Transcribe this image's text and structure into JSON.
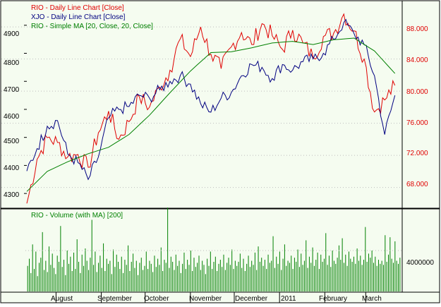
{
  "colors": {
    "background": "#f5fcf0",
    "frame": "#000000",
    "price_red": "#e00000",
    "xjo_navy": "#000080",
    "ma_green": "#008000",
    "volume_green": "#008000",
    "grid": "#bdbdbd"
  },
  "price_panel": {
    "legend": [
      {
        "label": "RIO - Daily Line Chart [Close]",
        "color": "#e00000"
      },
      {
        "label": "XJO - Daily Line Chart [Close]",
        "color": "#000080"
      },
      {
        "label": "RIO - Simple MA [20, Close, 20, Close]",
        "color": "#008000"
      }
    ],
    "left_ticks": [
      "4900",
      "4800",
      "4700",
      "4600",
      "4500",
      "4400",
      "4300"
    ],
    "right_ticks": [
      "88.000",
      "84.000",
      "80.000",
      "76.000",
      "72.000",
      "68.000"
    ]
  },
  "volume_panel": {
    "legend": "RIO - Volume (with MA) [200]",
    "right_tick": "4000000"
  },
  "x_axis": {
    "months": [
      "August",
      "September",
      "October",
      "November",
      "December",
      "2011",
      "February",
      "March"
    ]
  },
  "chart_data": [
    {
      "type": "line",
      "title": "",
      "xlabel": "",
      "ylabel": "",
      "x_range": [
        "2010-07-12",
        "2011-03-25"
      ],
      "left_axis": {
        "series": "XJO - Daily Line Chart [Close]",
        "ylim": [
          4250,
          4980
        ],
        "ticks": [
          4300,
          4400,
          4500,
          4600,
          4700,
          4800,
          4900
        ]
      },
      "right_axis": {
        "series": [
          "RIO - Daily Line Chart [Close]",
          "RIO - Simple MA [20, Close, 20, Close]"
        ],
        "ylim": [
          65.5,
          91.0
        ],
        "ticks": [
          68,
          72,
          76,
          80,
          84,
          88
        ]
      },
      "grid": true,
      "legend_position": "top-left",
      "series": [
        {
          "name": "RIO - Daily Line Chart [Close]",
          "axis": "right",
          "color": "#e00000",
          "x": [
            "2010-07-12",
            "2010-07-19",
            "2010-07-26",
            "2010-08-02",
            "2010-08-09",
            "2010-08-16",
            "2010-08-23",
            "2010-08-30",
            "2010-09-06",
            "2010-09-13",
            "2010-09-20",
            "2010-09-27",
            "2010-10-04",
            "2010-10-11",
            "2010-10-18",
            "2010-10-25",
            "2010-11-01",
            "2010-11-08",
            "2010-11-15",
            "2010-11-22",
            "2010-11-29",
            "2010-12-06",
            "2010-12-13",
            "2010-12-20",
            "2010-12-27",
            "2011-01-03",
            "2011-01-10",
            "2011-01-17",
            "2011-01-24",
            "2011-01-31",
            "2011-02-07",
            "2011-02-14",
            "2011-02-21",
            "2011-02-28",
            "2011-03-07",
            "2011-03-14",
            "2011-03-21"
          ],
          "y": [
            66.0,
            71.5,
            74.2,
            73.6,
            71.8,
            72.1,
            70.5,
            74.8,
            77.5,
            74.0,
            76.2,
            79.3,
            78.0,
            80.5,
            82.6,
            86.5,
            84.3,
            88.0,
            84.6,
            82.8,
            85.5,
            87.3,
            85.8,
            88.4,
            86.9,
            85.2,
            87.6,
            86.0,
            84.2,
            86.8,
            87.2,
            89.6,
            87.5,
            84.0,
            77.4,
            78.9,
            80.7
          ]
        },
        {
          "name": "XJO - Daily Line Chart [Close]",
          "axis": "left",
          "color": "#000080",
          "x": [
            "2010-07-12",
            "2010-07-19",
            "2010-07-26",
            "2010-08-02",
            "2010-08-09",
            "2010-08-16",
            "2010-08-23",
            "2010-08-30",
            "2010-09-06",
            "2010-09-13",
            "2010-09-20",
            "2010-09-27",
            "2010-10-04",
            "2010-10-11",
            "2010-10-18",
            "2010-10-25",
            "2010-11-01",
            "2010-11-08",
            "2010-11-15",
            "2010-11-22",
            "2010-11-29",
            "2010-12-06",
            "2010-12-13",
            "2010-12-20",
            "2010-12-27",
            "2011-01-03",
            "2011-01-10",
            "2011-01-17",
            "2011-01-24",
            "2011-01-31",
            "2011-02-07",
            "2011-02-14",
            "2011-02-21",
            "2011-02-28",
            "2011-03-07",
            "2011-03-14",
            "2011-03-21"
          ],
          "y": [
            4380,
            4460,
            4540,
            4560,
            4440,
            4410,
            4350,
            4430,
            4570,
            4600,
            4610,
            4650,
            4640,
            4670,
            4700,
            4720,
            4690,
            4620,
            4590,
            4640,
            4660,
            4720,
            4760,
            4750,
            4710,
            4760,
            4740,
            4770,
            4780,
            4800,
            4850,
            4910,
            4870,
            4830,
            4720,
            4510,
            4650
          ]
        },
        {
          "name": "RIO - Simple MA [20, Close, 20, Close]",
          "axis": "right",
          "color": "#008000",
          "x": [
            "2010-07-12",
            "2010-07-26",
            "2010-08-09",
            "2010-08-23",
            "2010-09-06",
            "2010-09-20",
            "2010-10-04",
            "2010-10-18",
            "2010-11-01",
            "2010-11-15",
            "2010-11-29",
            "2010-12-13",
            "2010-12-27",
            "2011-01-10",
            "2011-01-24",
            "2011-02-07",
            "2011-02-21",
            "2011-03-07",
            "2011-03-21"
          ],
          "y": [
            67.5,
            70.0,
            71.2,
            72.2,
            73.0,
            74.6,
            77.0,
            79.8,
            82.5,
            84.8,
            84.9,
            85.4,
            86.0,
            86.2,
            85.8,
            86.4,
            86.6,
            85.0,
            82.2
          ]
        }
      ]
    },
    {
      "type": "bar",
      "title": "",
      "series": [
        {
          "name": "RIO - Volume (with MA) [200]",
          "color": "#008000"
        }
      ],
      "x_range": [
        "2010-07-12",
        "2011-03-25"
      ],
      "ylim": [
        0,
        8000000
      ],
      "ticks": [
        4000000
      ],
      "volume_profile": [
        2.5,
        3.2,
        1.8,
        4.6,
        2.2,
        3.9,
        1.5,
        2.8,
        3.3,
        5.8,
        2.1,
        3.0,
        1.9,
        4.4,
        2.6,
        3.7,
        2.3,
        1.7,
        3.5,
        2.9,
        6.4,
        2.4,
        3.1,
        1.6,
        4.0,
        2.7,
        3.4,
        2.0,
        3.8,
        2.2,
        5.1,
        2.9,
        1.8,
        3.6,
        2.5,
        4.2,
        3.0,
        2.1,
        3.3,
        7.0,
        2.6,
        3.9,
        1.9,
        2.8,
        3.5,
        2.3,
        4.7,
        2.0,
        3.2,
        2.7,
        3.0,
        1.7,
        4.1,
        2.4,
        3.6,
        2.9,
        2.2,
        3.4,
        1.8,
        3.1,
        2.6,
        4.5,
        2.0,
        2.9,
        3.7,
        2.3,
        3.0,
        1.6,
        2.8,
        3.3,
        2.1,
        2.5,
        3.9,
        2.2,
        3.0,
        2.7,
        1.9,
        3.5,
        2.4,
        3.2,
        2.6,
        4.3,
        2.0,
        3.1,
        2.8,
        8.2,
        2.3,
        3.4,
        2.9,
        2.1,
        3.6,
        2.5,
        3.0,
        1.8,
        2.7,
        3.8,
        2.2,
        3.1,
        2.6,
        4.0,
        2.0,
        3.3,
        2.4,
        2.8,
        3.5,
        2.1,
        3.0,
        2.6,
        1.7,
        3.2,
        2.5,
        3.9,
        2.2,
        2.9,
        3.4,
        2.0,
        2.7,
        3.1,
        2.4,
        3.6,
        2.1,
        2.8,
        3.3,
        2.6,
        4.1,
        2.2,
        3.0,
        2.5,
        2.9,
        3.7,
        2.3,
        3.2,
        2.0,
        2.7,
        3.5,
        2.4,
        3.0,
        2.6,
        3.8,
        2.1,
        4.4,
        2.9,
        3.3,
        2.5,
        3.1,
        2.2,
        3.6,
        2.8,
        3.0,
        5.4,
        2.3,
        3.4,
        2.7,
        3.9,
        2.1,
        3.2,
        4.6,
        2.5,
        3.0,
        2.8,
        3.5,
        2.2,
        3.3,
        2.9,
        4.1,
        2.4,
        3.7,
        2.6,
        3.0,
        5.0,
        2.3,
        3.4,
        2.8,
        4.3,
        2.5,
        3.1,
        3.8,
        2.2,
        3.6,
        2.9,
        3.2,
        5.7,
        2.6,
        3.5,
        2.4,
        4.0,
        3.0,
        2.7,
        3.3,
        4.5,
        3.1,
        5.2,
        2.8,
        3.6,
        2.5,
        3.9,
        3.2,
        2.9,
        3.4,
        2.7,
        4.2,
        3.0,
        3.5,
        2.6,
        3.1,
        6.3,
        2.9,
        3.7,
        3.3,
        4.0,
        2.8,
        3.4,
        2.5,
        3.1,
        2.7,
        3.0,
        2.6,
        5.5,
        2.9,
        3.6,
        5.3,
        3.2,
        2.8,
        4.9,
        3.0,
        2.7,
        3.3
      ]
    }
  ]
}
